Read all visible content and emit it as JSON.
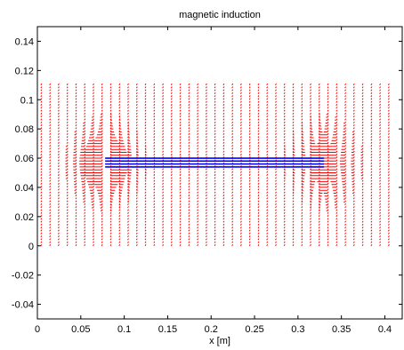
{
  "chart_data": {
    "type": "quiver",
    "title": "magnetic induction",
    "xlabel": "x [m]",
    "ylabel": "",
    "xlim": [
      0,
      0.42
    ],
    "ylim": [
      -0.05,
      0.15
    ],
    "xticks": [
      "0",
      "0.05",
      "0.1",
      "0.15",
      "0.2",
      "0.25",
      "0.3",
      "0.35",
      "0.4"
    ],
    "xtick_values": [
      0,
      0.05,
      0.1,
      0.15,
      0.2,
      0.25,
      0.3,
      0.35,
      0.4
    ],
    "yticks": [
      "-0.04",
      "-0.02",
      "0",
      "0.02",
      "0.04",
      "0.06",
      "0.08",
      "0.1",
      "0.12",
      "0.14"
    ],
    "ytick_values": [
      -0.04,
      -0.02,
      0,
      0.02,
      0.04,
      0.06,
      0.08,
      0.1,
      0.12,
      0.14
    ],
    "grid": false,
    "field": {
      "color": "#ff0000",
      "x_columns": [
        0.004,
        0.014,
        0.024,
        0.034,
        0.044,
        0.054,
        0.064,
        0.074,
        0.084,
        0.094,
        0.104,
        0.114,
        0.124,
        0.134,
        0.144,
        0.154,
        0.164,
        0.174,
        0.184,
        0.194,
        0.204,
        0.214,
        0.224,
        0.234,
        0.244,
        0.254,
        0.264,
        0.274,
        0.284,
        0.294,
        0.304,
        0.314,
        0.324,
        0.334,
        0.344,
        0.354,
        0.364,
        0.374,
        0.384,
        0.394,
        0.404
      ],
      "y_range": [
        0,
        0.11
      ],
      "y_step": 0.002
    },
    "conductors": {
      "color": "#0000ff",
      "x_range": [
        0.078,
        0.33
      ],
      "y_levels": [
        0.054,
        0.056,
        0.058,
        0.06
      ]
    }
  }
}
